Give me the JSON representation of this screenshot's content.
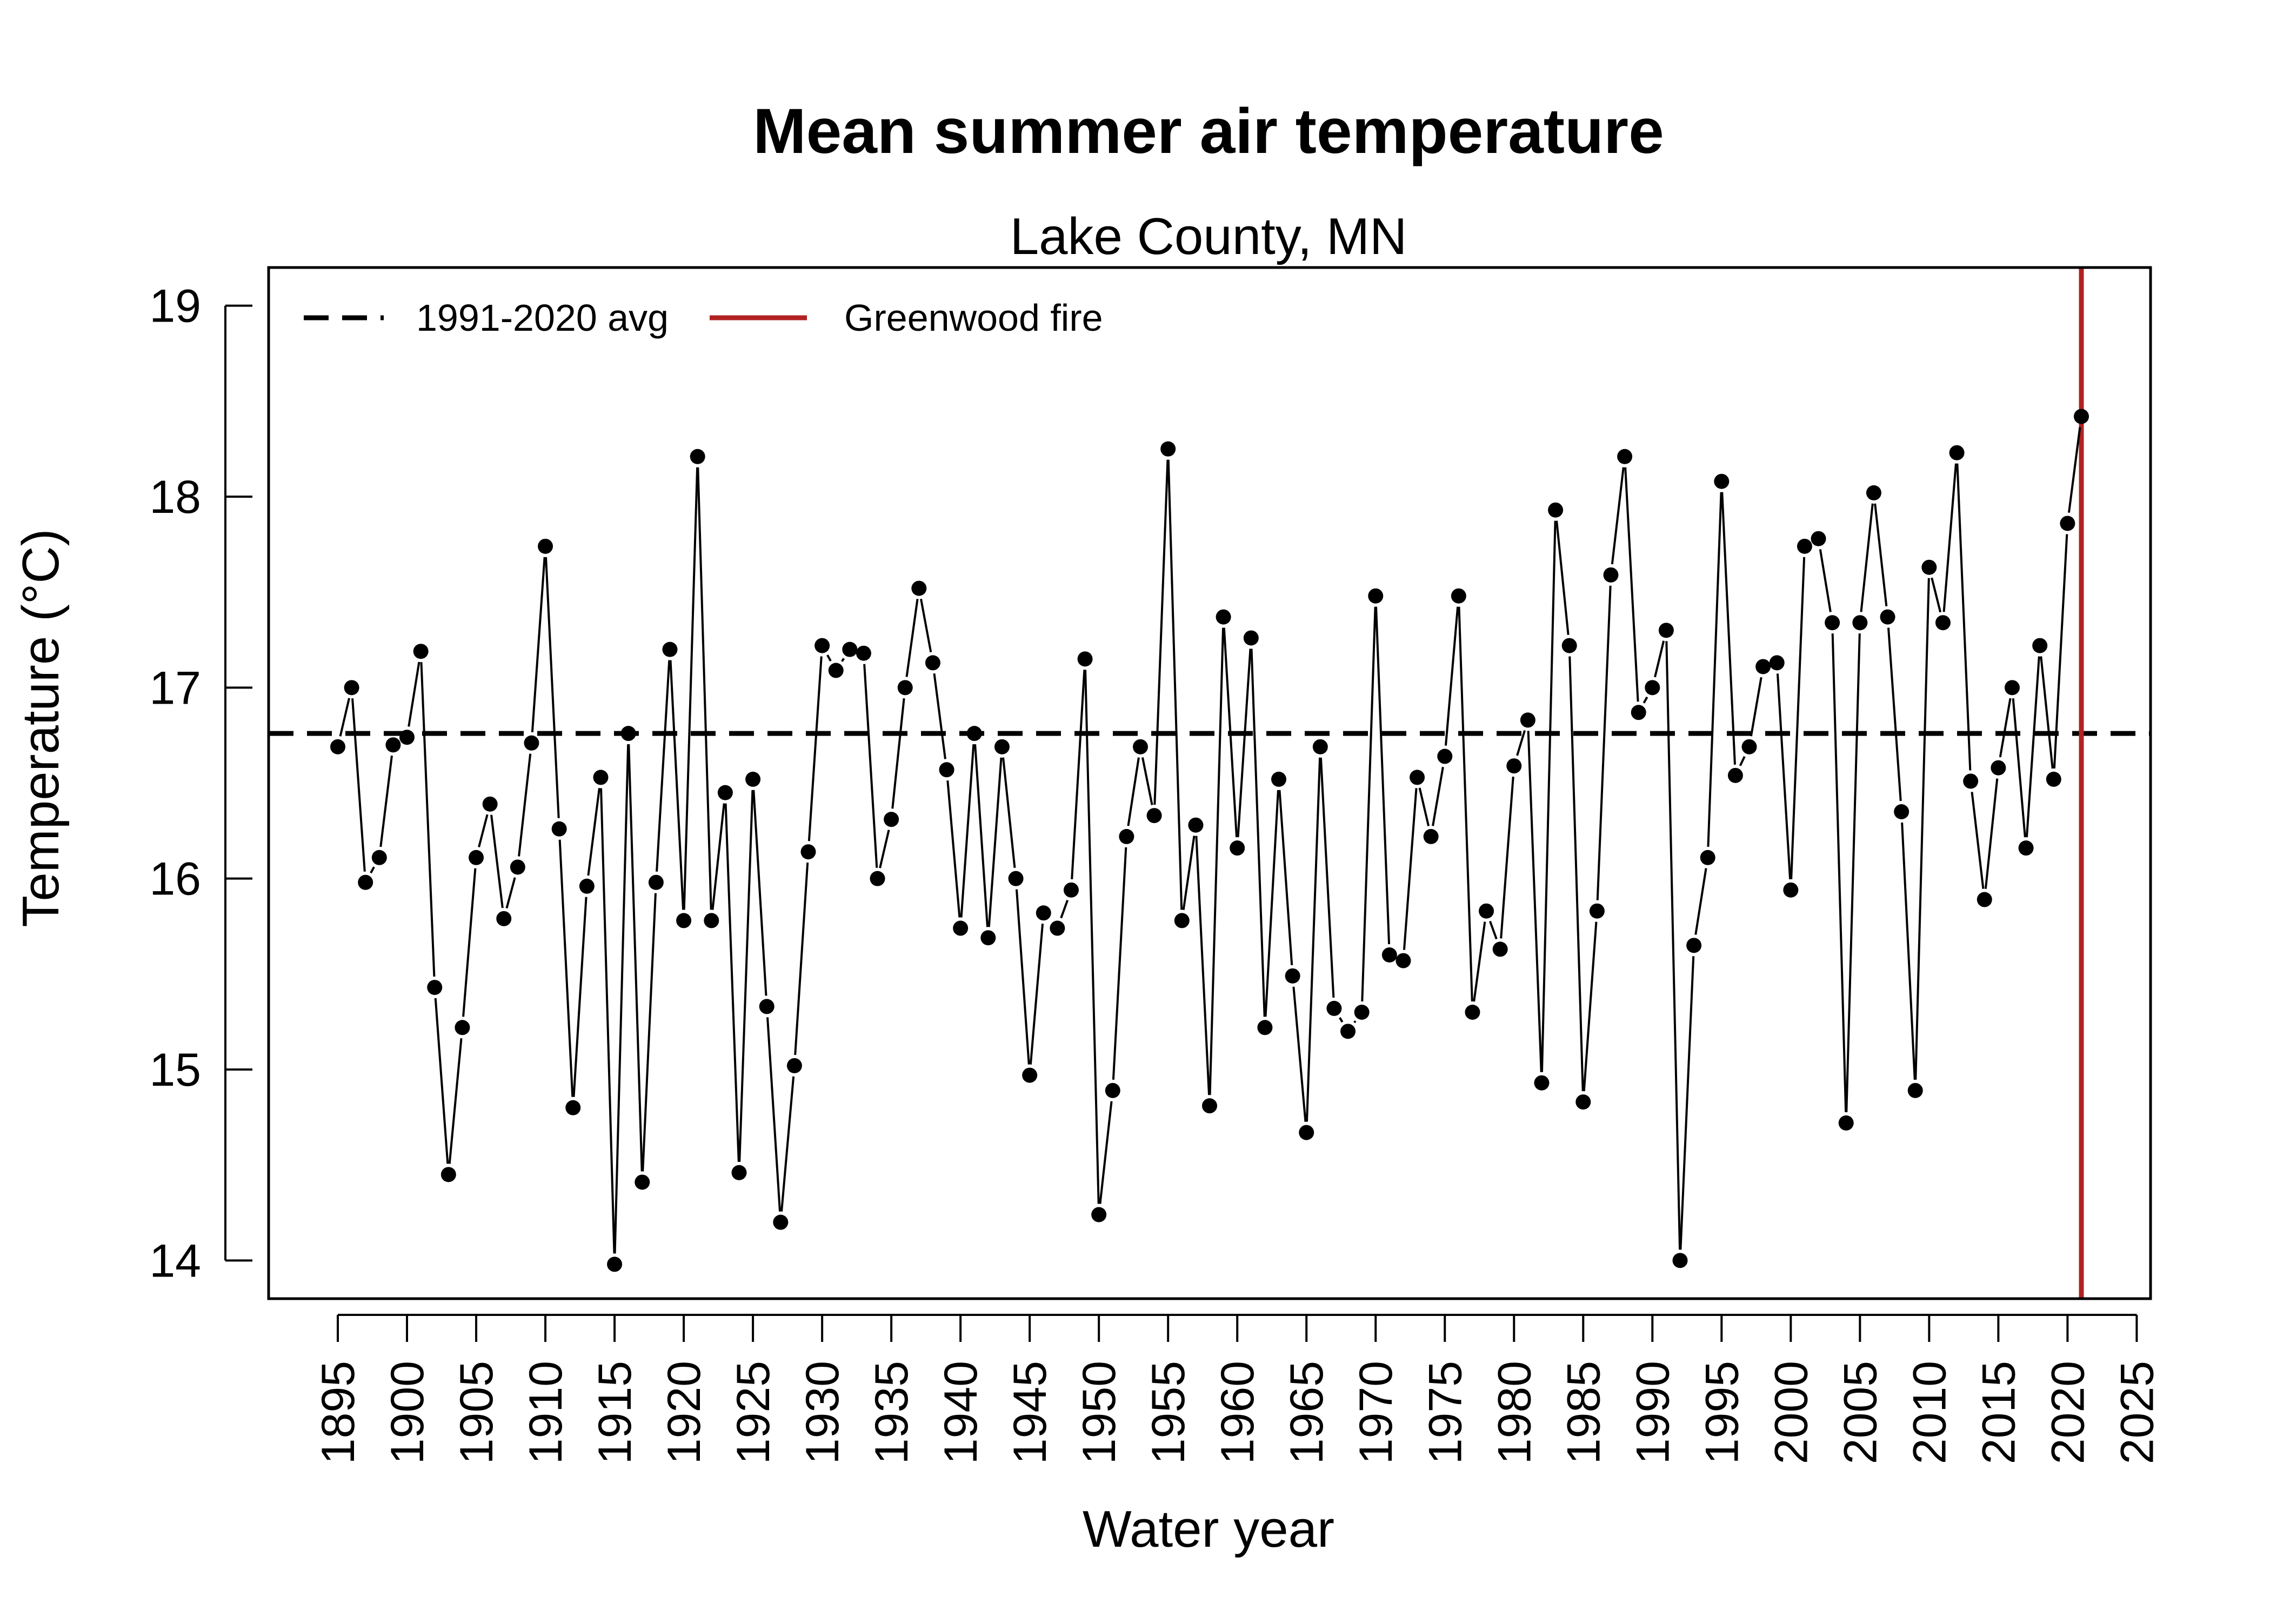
{
  "chart_data": {
    "type": "line",
    "title": "Mean summer air temperature",
    "subtitle": "Lake County, MN",
    "xlabel": "Water year",
    "ylabel": "Temperature (°C)",
    "xlim": [
      1890,
      2026
    ],
    "ylim": [
      13.8,
      19.2
    ],
    "x_ticks": [
      1895,
      1900,
      1905,
      1910,
      1915,
      1920,
      1925,
      1930,
      1935,
      1940,
      1945,
      1950,
      1955,
      1960,
      1965,
      1970,
      1975,
      1980,
      1985,
      1990,
      1995,
      2000,
      2005,
      2010,
      2015,
      2020,
      2025
    ],
    "y_ticks": [
      14,
      15,
      16,
      17,
      18,
      19
    ],
    "grid": false,
    "legend": {
      "position": "top-left",
      "entries": [
        {
          "label": "1991-2020 avg",
          "style": "dashed",
          "color": "#000000"
        },
        {
          "label": "Greenwood fire",
          "style": "solid",
          "color": "#b22222"
        }
      ]
    },
    "reference_lines": [
      {
        "name": "1991-2020 avg",
        "orientation": "horizontal",
        "value": 16.76,
        "color": "#000000",
        "style": "dashed"
      },
      {
        "name": "Greenwood fire",
        "orientation": "vertical",
        "value": 2021,
        "color": "#b22222",
        "style": "solid"
      }
    ],
    "series": [
      {
        "color": "#000000",
        "x": [
          1895,
          1896,
          1897,
          1898,
          1899,
          1900,
          1901,
          1902,
          1903,
          1904,
          1905,
          1906,
          1907,
          1908,
          1909,
          1910,
          1911,
          1912,
          1913,
          1914,
          1915,
          1916,
          1917,
          1918,
          1919,
          1920,
          1921,
          1922,
          1923,
          1924,
          1925,
          1926,
          1927,
          1928,
          1929,
          1930,
          1931,
          1932,
          1933,
          1934,
          1935,
          1936,
          1937,
          1938,
          1939,
          1940,
          1941,
          1942,
          1943,
          1944,
          1945,
          1946,
          1947,
          1948,
          1949,
          1950,
          1951,
          1952,
          1953,
          1954,
          1955,
          1956,
          1957,
          1958,
          1959,
          1960,
          1961,
          1962,
          1963,
          1964,
          1965,
          1966,
          1967,
          1968,
          1969,
          1970,
          1971,
          1972,
          1973,
          1974,
          1975,
          1976,
          1977,
          1978,
          1979,
          1980,
          1981,
          1982,
          1983,
          1984,
          1985,
          1986,
          1987,
          1988,
          1989,
          1990,
          1991,
          1992,
          1993,
          1994,
          1995,
          1996,
          1997,
          1998,
          1999,
          2000,
          2001,
          2002,
          2003,
          2004,
          2005,
          2006,
          2007,
          2008,
          2009,
          2010,
          2011,
          2012,
          2013,
          2014,
          2015,
          2016,
          2017,
          2018,
          2019,
          2020,
          2021
        ],
        "y": [
          16.69,
          17.0,
          15.98,
          16.11,
          16.7,
          16.74,
          17.19,
          15.43,
          14.45,
          15.22,
          16.11,
          16.39,
          15.79,
          16.06,
          16.71,
          17.74,
          16.26,
          14.8,
          15.96,
          16.53,
          13.98,
          16.76,
          14.41,
          15.98,
          17.2,
          15.78,
          18.21,
          15.78,
          16.45,
          14.46,
          16.52,
          15.33,
          14.2,
          15.02,
          16.14,
          17.22,
          17.09,
          17.2,
          17.18,
          16.0,
          16.31,
          17.0,
          17.52,
          17.13,
          16.57,
          15.74,
          16.76,
          15.69,
          16.69,
          16.0,
          14.97,
          15.82,
          15.74,
          15.94,
          17.15,
          14.24,
          14.89,
          16.22,
          16.69,
          16.33,
          18.25,
          15.78,
          16.28,
          14.81,
          17.37,
          16.16,
          17.26,
          15.22,
          16.52,
          15.49,
          14.67,
          16.69,
          15.32,
          15.2,
          15.3,
          17.48,
          15.6,
          15.57,
          16.53,
          16.22,
          16.64,
          17.48,
          15.3,
          15.83,
          15.63,
          16.59,
          16.83,
          14.93,
          17.93,
          17.22,
          14.83,
          15.83,
          17.59,
          18.21,
          16.87,
          17.0,
          17.3,
          14.0,
          15.65,
          16.11,
          18.08,
          16.54,
          16.69,
          17.11,
          17.13,
          15.94,
          17.74,
          17.78,
          17.34,
          14.72,
          17.34,
          18.02,
          17.37,
          16.35,
          14.89,
          17.63,
          17.34,
          18.23,
          16.51,
          15.89,
          16.58,
          17.0,
          16.16,
          17.22,
          16.52,
          17.86,
          18.42
        ]
      }
    ]
  }
}
